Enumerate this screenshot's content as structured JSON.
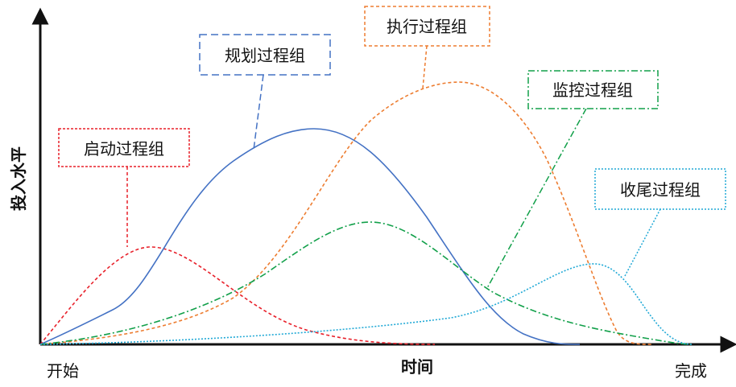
{
  "axes": {
    "y_label": "投入水平",
    "x_label": "时间",
    "x_start": "开始",
    "x_end": "完成"
  },
  "groups": [
    {
      "id": "initiating",
      "label": "启动过程组",
      "color": "#e8202a",
      "dash": "short"
    },
    {
      "id": "planning",
      "label": "规划过程组",
      "color": "#4472c4",
      "dash": "solid",
      "label_dash": "long"
    },
    {
      "id": "executing",
      "label": "执行过程组",
      "color": "#ed7d31",
      "dash": "short"
    },
    {
      "id": "monitoring",
      "label": "监控过程组",
      "color": "#12a04a",
      "dash": "dashdot"
    },
    {
      "id": "closing",
      "label": "收尾过程组",
      "color": "#21a9d6",
      "dash": "dot"
    }
  ]
}
